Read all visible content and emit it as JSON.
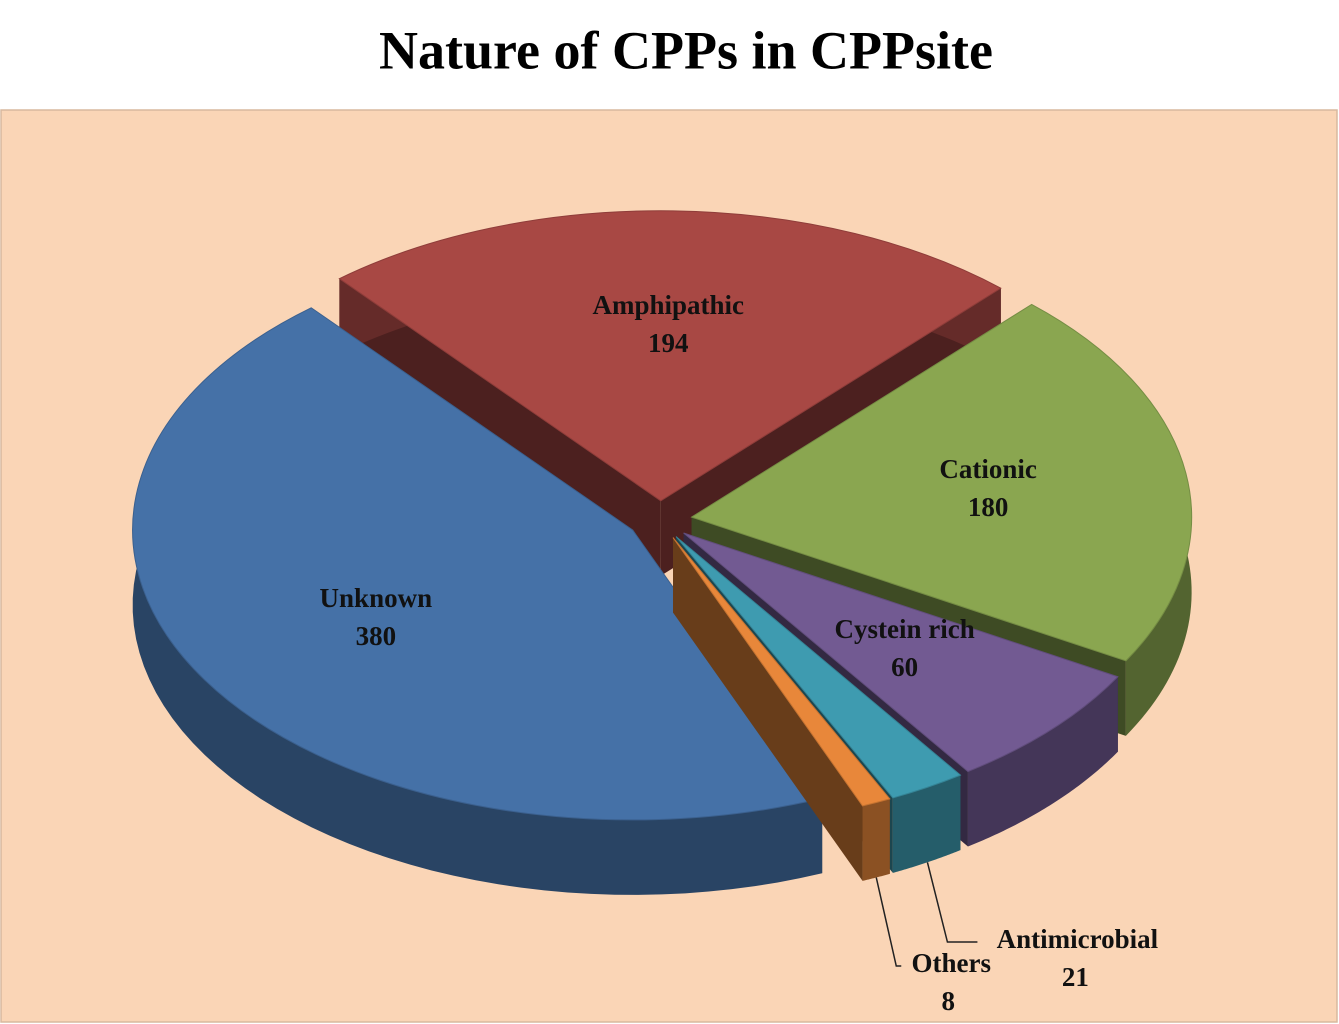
{
  "chart_data": {
    "type": "pie",
    "title": "Nature of CPPs in CPPsite",
    "categories": [
      "Amphipathic",
      "Cationic",
      "Cystein rich",
      "Antimicrobial",
      "Others",
      "Unknown"
    ],
    "values": [
      194,
      180,
      60,
      21,
      8,
      380
    ],
    "colors": [
      "#a84844",
      "#8aa650",
      "#725a92",
      "#3e9bb0",
      "#e8873a",
      "#4571a7"
    ]
  }
}
